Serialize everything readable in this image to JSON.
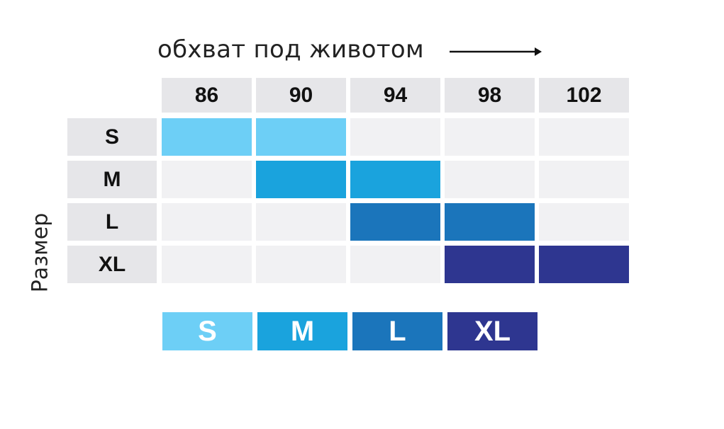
{
  "chart_data": {
    "type": "heatmap",
    "xlabel": "обхват под животом",
    "ylabel": "Размер",
    "x": [
      "86",
      "90",
      "94",
      "98",
      "102"
    ],
    "y": [
      "S",
      "M",
      "L",
      "XL"
    ],
    "cells": [
      {
        "size": "S",
        "columns": [
          "86",
          "90"
        ]
      },
      {
        "size": "M",
        "columns": [
          "90",
          "94"
        ]
      },
      {
        "size": "L",
        "columns": [
          "94",
          "98"
        ]
      },
      {
        "size": "XL",
        "columns": [
          "98",
          "102"
        ]
      }
    ],
    "legend": [
      {
        "label": "S",
        "color": "#6dcff6"
      },
      {
        "label": "M",
        "color": "#1aa3dd"
      },
      {
        "label": "L",
        "color": "#1b75bb"
      },
      {
        "label": "XL",
        "color": "#2e3690"
      }
    ],
    "empty_color": "#f1f1f3",
    "header_color": "#e6e6e9"
  }
}
